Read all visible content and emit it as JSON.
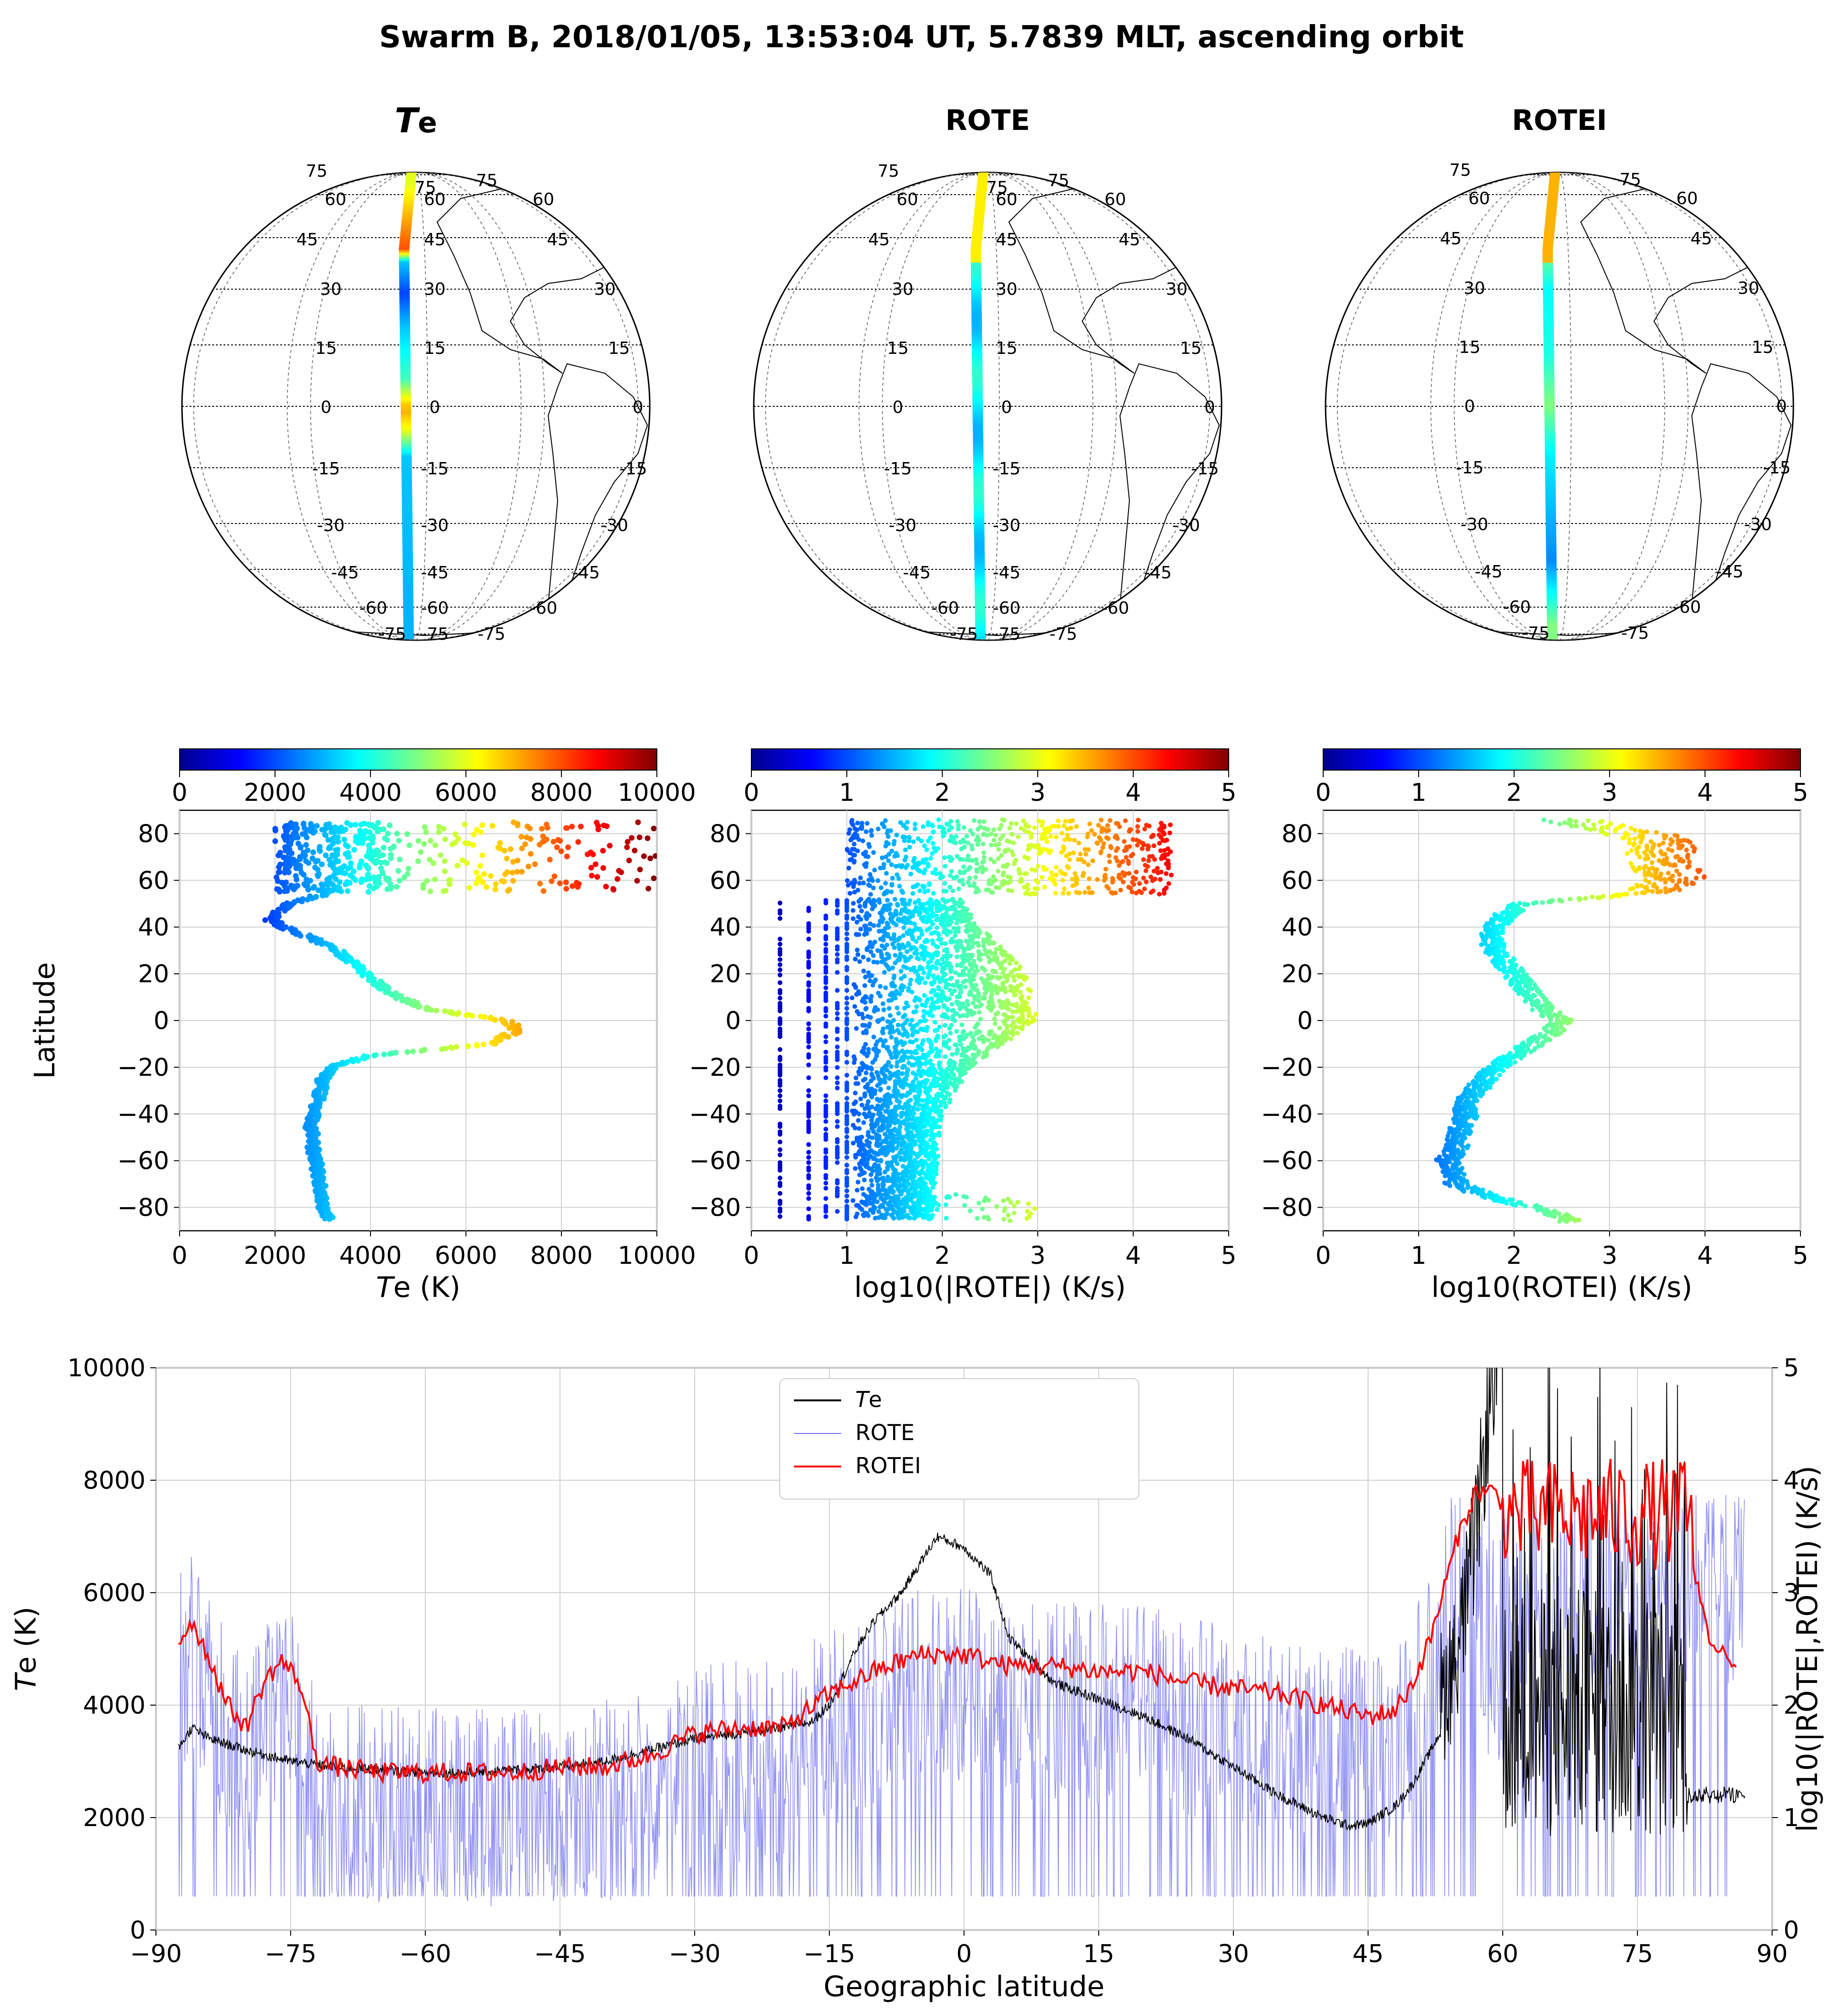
{
  "figure": {
    "title": "Swarm B, 2018/01/05, 13:53:04 UT, 5.7839 MLT, ascending orbit"
  },
  "globes": [
    {
      "title_prefix": "T",
      "title_suffix": "e",
      "kind": "Te",
      "lat_labels": [
        "75",
        "75",
        "75",
        "60",
        "60",
        "60",
        "45",
        "45",
        "45",
        "30",
        "30",
        "30",
        "15",
        "15",
        "15",
        "0",
        "0",
        "0",
        "-15",
        "-15",
        "-15",
        "-30",
        "-30",
        "-30",
        "-45",
        "-45",
        "-45",
        "-60",
        "-60",
        "-60",
        "-75",
        "-75",
        "-75"
      ]
    },
    {
      "title": "ROTE",
      "kind": "ROTE",
      "lat_labels": [
        "75",
        "75",
        "75",
        "60",
        "60",
        "60",
        "45",
        "45",
        "45",
        "30",
        "30",
        "30",
        "15",
        "15",
        "15",
        "0",
        "0",
        "0",
        "-15",
        "-15",
        "-15",
        "-30",
        "-30",
        "-30",
        "-45",
        "-45",
        "-45",
        "-60",
        "-60",
        "-60",
        "-75",
        "-75",
        "-75"
      ]
    },
    {
      "title": "ROTEI",
      "kind": "ROTEI",
      "lat_labels": [
        "75",
        "75",
        "60",
        "60",
        "45",
        "45",
        "30",
        "30",
        "15",
        "15",
        "0",
        "0",
        "-15",
        "-15",
        "-30",
        "-30",
        "-45",
        "-45",
        "-60",
        "-60",
        "-75",
        "-75"
      ]
    }
  ],
  "colorbars": [
    {
      "ticks": [
        "0",
        "2000",
        "4000",
        "6000",
        "8000",
        "10000"
      ],
      "min": 0,
      "max": 10000
    },
    {
      "ticks": [
        "0",
        "1",
        "2",
        "3",
        "4",
        "5"
      ],
      "min": 0,
      "max": 5
    },
    {
      "ticks": [
        "0",
        "1",
        "2",
        "3",
        "4",
        "5"
      ],
      "min": 0,
      "max": 5
    }
  ],
  "chart_data": [
    {
      "type": "scatter",
      "id": "te-scatter",
      "ylabel": "Latitude",
      "xlabel_prefix": "T",
      "xlabel_suffix": "e (K)",
      "xlim": [
        0,
        10000
      ],
      "ylim": [
        -90,
        90
      ],
      "xticks": [
        "0",
        "2000",
        "4000",
        "6000",
        "8000",
        "10000"
      ],
      "yticks": [
        "80",
        "60",
        "40",
        "20",
        "0",
        "−20",
        "−40",
        "−60",
        "−80"
      ],
      "profile_lat": [
        -85,
        -80,
        -75,
        -70,
        -65,
        -60,
        -55,
        -50,
        -45,
        -40,
        -35,
        -30,
        -25,
        -20,
        -15,
        -10,
        -5,
        -2,
        0,
        5,
        10,
        15,
        20,
        25,
        30,
        35,
        40,
        43,
        45,
        50,
        53,
        55
      ],
      "profile_te": [
        3100,
        3000,
        2950,
        2950,
        2900,
        2850,
        2800,
        2800,
        2750,
        2800,
        2900,
        2950,
        3000,
        3200,
        4000,
        6500,
        7000,
        7000,
        6800,
        5200,
        4600,
        4200,
        3900,
        3600,
        3300,
        2800,
        2200,
        1900,
        2000,
        2300,
        2800,
        3200
      ],
      "auroral_lat_range": [
        55,
        85
      ],
      "auroral_te_range": [
        1000,
        10000
      ]
    },
    {
      "type": "scatter",
      "id": "rote-scatter",
      "xlabel": "log10(|ROTE|) (K/s)",
      "xlim": [
        0,
        5
      ],
      "ylim": [
        -90,
        90
      ],
      "xticks": [
        "0",
        "1",
        "2",
        "3",
        "4",
        "5"
      ],
      "yticks": [
        "80",
        "60",
        "40",
        "20",
        "0",
        "−20",
        "−40",
        "−60",
        "−80"
      ],
      "discrete_columns": [
        0.3,
        0.6,
        0.78,
        0.9,
        1.0
      ]
    },
    {
      "type": "scatter",
      "id": "rotei-scatter",
      "xlabel": "log10(ROTEI) (K/s)",
      "xlim": [
        0,
        5
      ],
      "ylim": [
        -90,
        90
      ],
      "xticks": [
        "0",
        "1",
        "2",
        "3",
        "4",
        "5"
      ],
      "yticks": [
        "80",
        "60",
        "40",
        "20",
        "0",
        "−20",
        "−40",
        "−60",
        "−80"
      ],
      "profile_lat": [
        -85,
        -80,
        -75,
        -70,
        -65,
        -60,
        -55,
        -50,
        -45,
        -40,
        -35,
        -30,
        -25,
        -20,
        -15,
        -10,
        -5,
        0,
        5,
        10,
        15,
        20,
        25,
        30,
        35,
        40,
        45,
        50,
        55,
        60,
        65,
        70,
        75,
        80,
        85
      ],
      "profile_rotei": [
        2.6,
        2.2,
        1.7,
        1.4,
        1.35,
        1.3,
        1.4,
        1.4,
        1.45,
        1.5,
        1.5,
        1.6,
        1.7,
        1.8,
        2.0,
        2.2,
        2.4,
        2.5,
        2.3,
        2.2,
        2.1,
        2.0,
        1.9,
        1.8,
        1.75,
        1.8,
        1.9,
        2.1,
        3.5,
        3.7,
        3.6,
        3.5,
        3.6,
        3.3,
        2.6
      ]
    },
    {
      "type": "line",
      "id": "latitude-series",
      "xlabel": "Geographic latitude",
      "ylabel_prefix": "T",
      "ylabel_suffix": "e (K)",
      "y2label": "log10(|ROTE|,ROTEI) (K/s)",
      "xlim": [
        -90,
        90
      ],
      "ylim": [
        0,
        10000
      ],
      "y2lim": [
        0,
        5
      ],
      "xticks": [
        "−90",
        "−75",
        "−60",
        "−45",
        "−30",
        "−15",
        "0",
        "15",
        "30",
        "45",
        "60",
        "75",
        "90"
      ],
      "yticks": [
        "0",
        "2000",
        "4000",
        "6000",
        "8000",
        "10000"
      ],
      "y2ticks": [
        "0",
        "1",
        "2",
        "3",
        "4",
        "5"
      ],
      "legend": [
        {
          "label_prefix": "T",
          "label_suffix": "e",
          "color": "#000000"
        },
        {
          "label": "ROTE",
          "color": "#6c6cf0"
        },
        {
          "label": "ROTEI",
          "color": "#ff0000"
        }
      ],
      "te_profile_lat": [
        -88,
        -86,
        -84,
        -80,
        -75,
        -70,
        -65,
        -60,
        -55,
        -50,
        -45,
        -40,
        -35,
        -30,
        -25,
        -20,
        -17,
        -15,
        -12,
        -10,
        -7,
        -5,
        -3,
        0,
        3,
        5,
        10,
        15,
        20,
        25,
        30,
        35,
        40,
        43,
        45,
        48,
        50,
        53,
        55,
        57,
        58,
        59,
        60
      ],
      "te_profile_val": [
        3100,
        3600,
        3400,
        3200,
        3000,
        2900,
        2850,
        2800,
        2800,
        2850,
        2900,
        3000,
        3200,
        3400,
        3500,
        3600,
        3700,
        4000,
        5000,
        5500,
        6000,
        6500,
        7000,
        6800,
        6300,
        5200,
        4400,
        4100,
        3800,
        3400,
        2900,
        2400,
        2000,
        1850,
        1900,
        2200,
        2600,
        3500,
        4500,
        6500,
        8000,
        9500,
        10000
      ],
      "te_auroral_lat": [
        61,
        85
      ],
      "rotei_profile_lat": [
        -88,
        -86,
        -84,
        -82,
        -80,
        -78,
        -76,
        -74,
        -72,
        -70,
        -65,
        -60,
        -55,
        -50,
        -45,
        -40,
        -35,
        -30,
        -25,
        -20,
        -15,
        -10,
        -5,
        0,
        5,
        10,
        15,
        20,
        25,
        30,
        35,
        40,
        45,
        48,
        50,
        52,
        55,
        57,
        59,
        60
      ],
      "rotei_profile_val": [
        2.5,
        2.75,
        2.4,
        2.0,
        1.8,
        2.2,
        2.4,
        2.2,
        1.5,
        1.45,
        1.4,
        1.4,
        1.4,
        1.4,
        1.45,
        1.45,
        1.55,
        1.75,
        1.8,
        1.8,
        2.1,
        2.3,
        2.45,
        2.45,
        2.35,
        2.35,
        2.3,
        2.3,
        2.2,
        2.15,
        2.1,
        2.0,
        1.9,
        1.95,
        2.2,
        2.6,
        3.5,
        3.9,
        3.9,
        3.8
      ],
      "rotei_auroral_lat": [
        61,
        86
      ],
      "rotei_auroral_range": [
        2.3,
        4.1
      ],
      "rote_floor": 0.3
    }
  ]
}
